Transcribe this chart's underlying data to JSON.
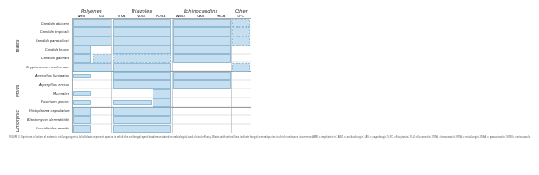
{
  "col_groups": [
    {
      "name": "Polyenes",
      "cols": [
        "AMB",
        "FLU"
      ]
    },
    {
      "name": "Triazoles",
      "cols": [
        "ITRA",
        "VORI",
        "POSA"
      ]
    },
    {
      "name": "Echinocandins",
      "cols": [
        "ANID",
        "CAS",
        "MICA"
      ]
    },
    {
      "name": "Other",
      "cols": [
        "5-FC"
      ]
    }
  ],
  "row_groups": [
    {
      "name": "Yeasts",
      "rows": [
        "Candida albicans",
        "Candida tropicalis",
        "Candida parapsilosis",
        "Candida krusei",
        "Candida glabrata",
        "Cryptococcus neoformans"
      ]
    },
    {
      "name": "Molds",
      "rows": [
        "Aspergillus fumigatus",
        "Aspergillus terreus",
        "Mucorales",
        "Fusarium species"
      ]
    },
    {
      "name": "Dimorphic",
      "rows": [
        "Histoplasma capsulatum",
        "Blastomyces dermatitidis",
        "Coccidioides immitis"
      ]
    }
  ],
  "cells": {
    "Candida albicans": {
      "AMB": "solid",
      "FLU": "solid",
      "ITRA": "solid",
      "VORI": "solid",
      "POSA": "solid",
      "ANID": "solid",
      "CAS": "solid",
      "MICA": "solid",
      "5-FC": "dashed"
    },
    "Candida tropicalis": {
      "AMB": "solid",
      "FLU": "solid",
      "ITRA": "solid",
      "VORI": "solid",
      "POSA": "solid",
      "ANID": "solid",
      "CAS": "solid",
      "MICA": "solid",
      "5-FC": "dashed"
    },
    "Candida parapsilosis": {
      "AMB": "solid",
      "FLU": "solid",
      "ITRA": "solid",
      "VORI": "solid",
      "POSA": "solid",
      "ANID": "solid",
      "CAS": "solid",
      "MICA": "solid",
      "5-FC": "dashed"
    },
    "Candida krusei": {
      "AMB": "solid",
      "FLU": "none",
      "ITRA": "solid",
      "VORI": "solid",
      "POSA": "solid",
      "ANID": "solid",
      "CAS": "solid",
      "MICA": "solid",
      "5-FC": "none"
    },
    "Candida glabrata": {
      "AMB": "solid",
      "FLU": "dashed",
      "ITRA": "dashed",
      "VORI": "dashed",
      "POSA": "dashed",
      "ANID": "solid",
      "CAS": "solid",
      "MICA": "solid",
      "5-FC": "none"
    },
    "Cryptococcus neoformans": {
      "AMB": "solid",
      "FLU": "solid",
      "ITRA": "solid",
      "VORI": "solid",
      "POSA": "solid",
      "ANID": "none",
      "CAS": "none",
      "MICA": "none",
      "5-FC": "dashed"
    },
    "Aspergillus fumigatus": {
      "AMB": "small",
      "FLU": "none",
      "ITRA": "solid",
      "VORI": "solid",
      "POSA": "solid",
      "ANID": "solid",
      "CAS": "solid",
      "MICA": "solid",
      "5-FC": "none"
    },
    "Aspergillus terreus": {
      "AMB": "none",
      "FLU": "none",
      "ITRA": "solid",
      "VORI": "solid",
      "POSA": "solid",
      "ANID": "solid",
      "CAS": "solid",
      "MICA": "solid",
      "5-FC": "none"
    },
    "Mucorales": {
      "AMB": "small",
      "FLU": "none",
      "ITRA": "none",
      "VORI": "none",
      "POSA": "solid",
      "ANID": "none",
      "CAS": "none",
      "MICA": "none",
      "5-FC": "none"
    },
    "Fusarium species": {
      "AMB": "small",
      "FLU": "none",
      "ITRA": "small",
      "VORI": "small",
      "POSA": "solid",
      "ANID": "none",
      "CAS": "none",
      "MICA": "none",
      "5-FC": "none"
    },
    "Histoplasma capsulatum": {
      "AMB": "solid",
      "FLU": "none",
      "ITRA": "solid",
      "VORI": "solid",
      "POSA": "solid",
      "ANID": "none",
      "CAS": "none",
      "MICA": "none",
      "5-FC": "none"
    },
    "Blastomyces dermatitidis": {
      "AMB": "solid",
      "FLU": "none",
      "ITRA": "solid",
      "VORI": "solid",
      "POSA": "solid",
      "ANID": "none",
      "CAS": "none",
      "MICA": "none",
      "5-FC": "none"
    },
    "Coccidioides immitis": {
      "AMB": "solid",
      "FLU": "none",
      "ITRA": "solid",
      "VORI": "solid",
      "POSA": "solid",
      "ANID": "none",
      "CAS": "none",
      "MICA": "none",
      "5-FC": "none"
    }
  },
  "fill_color": "#c5dff0",
  "border_color": "#6fa8cc",
  "bg_color": "#ffffff",
  "grid_color": "#bbbbbb",
  "text_color": "#222222",
  "caption": "FIGURE 3. Spectrum of action of systemic antifungal agents. Solid blocks represent species in which the antifungal agent has demonstrated microbiological and clinical efficacy. Blocks with dotted lines indicate fungal genera/species in which resistance is common. AMB = amphotericin; ANID = anidulafungin; CAS = caspofungin; 5-FC = flucytosine; FLU = fluconazole; ITRA = itraconazole; MICA = micafungin; POSA = posaconazole; VORI = voriconazole."
}
